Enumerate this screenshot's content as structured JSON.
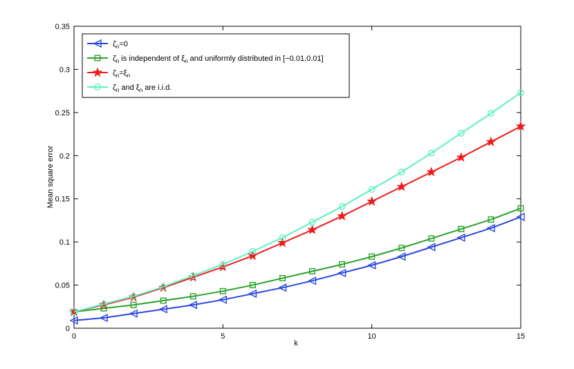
{
  "chart_data": {
    "type": "line",
    "title": "",
    "xlabel": "k",
    "ylabel": "Mean square error",
    "xlim": [
      0,
      15
    ],
    "ylim": [
      0,
      0.35
    ],
    "xticks": [
      0,
      5,
      10,
      15
    ],
    "xtick_labels": [
      "0",
      "5",
      "10",
      "15"
    ],
    "yticks": [
      0,
      0.05,
      0.1,
      0.15,
      0.2,
      0.25,
      0.3,
      0.35
    ],
    "ytick_labels": [
      "0",
      "0.05",
      "0.1",
      "0.15",
      "0.2",
      "0.25",
      "0.3",
      "0.35"
    ],
    "grid": false,
    "legend_position": "top-left",
    "x": [
      0,
      1,
      2,
      3,
      4,
      5,
      6,
      7,
      8,
      9,
      10,
      11,
      12,
      13,
      14,
      15
    ],
    "series": [
      {
        "legend": {
          "sym": "ζ",
          "sub1": "n",
          "rest": "=0",
          "sym2": "",
          "sub2": "",
          "tail": ""
        },
        "color": "#2b45e0",
        "marker": "triangle-left",
        "values": [
          0.009,
          0.012,
          0.017,
          0.022,
          0.027,
          0.033,
          0.04,
          0.047,
          0.055,
          0.064,
          0.073,
          0.083,
          0.094,
          0.105,
          0.116,
          0.129
        ]
      },
      {
        "legend": {
          "sym": "ζ",
          "sub1": "n",
          "rest": " is independent of ",
          "sym2": "ξ",
          "sub2": "n",
          "tail": " and uniformly distributed in [−0.01,0.01]"
        },
        "color": "#27a12a",
        "marker": "square",
        "values": [
          0.019,
          0.023,
          0.027,
          0.032,
          0.037,
          0.043,
          0.05,
          0.058,
          0.066,
          0.074,
          0.083,
          0.093,
          0.104,
          0.115,
          0.126,
          0.139
        ]
      },
      {
        "legend": {
          "sym": "ζ",
          "sub1": "n",
          "rest": "=",
          "sym2": "ξ",
          "sub2": "n",
          "tail": ""
        },
        "color": "#f01a1a",
        "marker": "star",
        "values": [
          0.019,
          0.027,
          0.036,
          0.047,
          0.059,
          0.071,
          0.084,
          0.099,
          0.114,
          0.13,
          0.147,
          0.164,
          0.181,
          0.198,
          0.216,
          0.234
        ]
      },
      {
        "legend": {
          "sym": "ζ",
          "sub1": "n",
          "rest": " and ",
          "sym2": "ξ",
          "sub2": "n",
          "tail": " are i.i.d."
        },
        "color": "#5ef0c2",
        "marker": "circle",
        "values": [
          0.019,
          0.028,
          0.037,
          0.048,
          0.061,
          0.074,
          0.089,
          0.105,
          0.123,
          0.141,
          0.161,
          0.181,
          0.203,
          0.226,
          0.249,
          0.273
        ]
      }
    ]
  }
}
